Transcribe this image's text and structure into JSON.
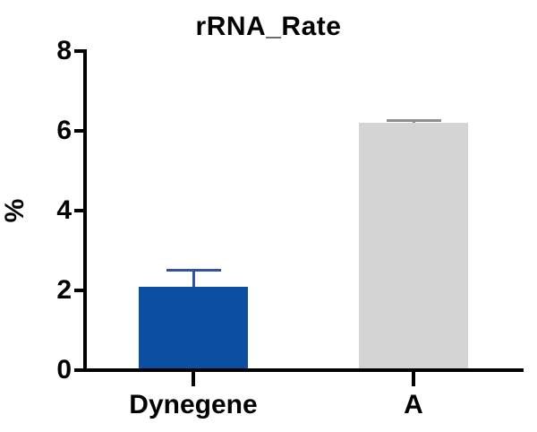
{
  "chart_data": {
    "type": "bar",
    "title": "rRNA_Rate",
    "xlabel": "",
    "ylabel": "%",
    "categories": [
      "Dynegene",
      "A"
    ],
    "series": [
      {
        "name": "rRNA_Rate",
        "values": [
          2.1,
          6.2
        ],
        "errors_plus": [
          0.4,
          0.06
        ]
      }
    ],
    "bar_colors": [
      "#0B4EA2",
      "#D4D4D4"
    ],
    "error_bar_colors": [
      "#3452A5",
      "#8F8F8F"
    ],
    "axis_color": "#000000",
    "background_color": "#FFFFFF",
    "ylim": [
      0,
      8
    ],
    "yticks": [
      0,
      2,
      4,
      6,
      8
    ],
    "grid": false,
    "legend_position": "none"
  }
}
